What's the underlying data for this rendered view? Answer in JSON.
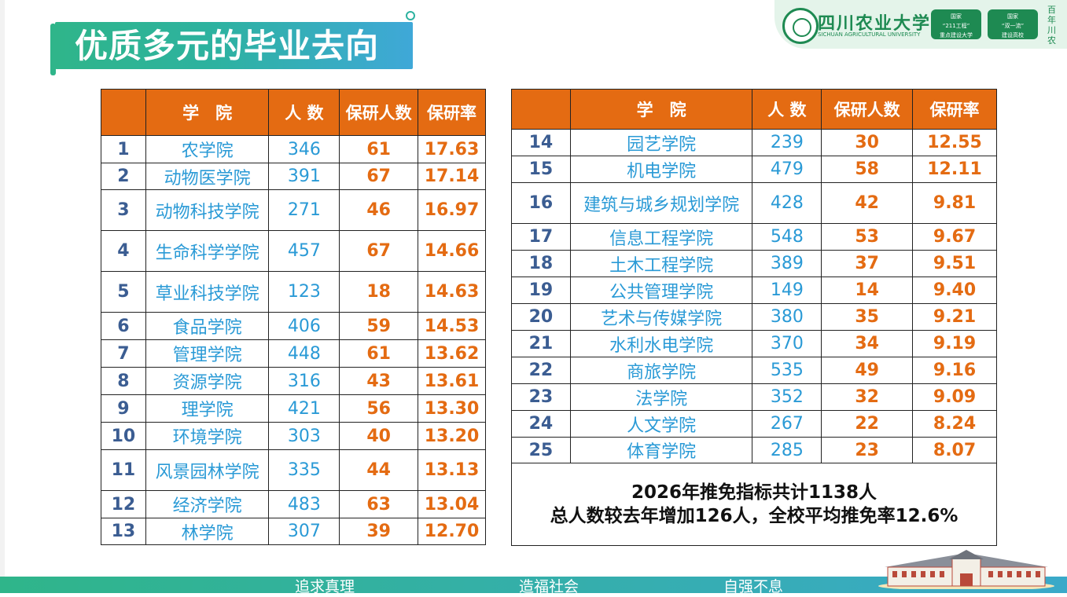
{
  "title": "优质多元的毕业去向",
  "logo": {
    "name": "四川农业大学",
    "sub": "SICHUAN AGRICULTURAL UNIVERSITY",
    "badge1": [
      "国家",
      "“211工程”",
      "重点建设大学"
    ],
    "badge2": [
      "国家",
      "“双一流”",
      "建设高校"
    ],
    "side": "百年川农"
  },
  "table_headers": [
    "学　院",
    "人 数",
    "保研人数",
    "保研率"
  ],
  "left_rows": [
    {
      "idx": "1",
      "name": "农学院",
      "count": "346",
      "rec": "61",
      "rate": "17.63"
    },
    {
      "idx": "2",
      "name": "动物医学院",
      "count": "391",
      "rec": "67",
      "rate": "17.14"
    },
    {
      "idx": "3",
      "name": "动物科技学院",
      "count": "271",
      "rec": "46",
      "rate": "16.97"
    },
    {
      "idx": "4",
      "name": "生命科学学院",
      "count": "457",
      "rec": "67",
      "rate": "14.66"
    },
    {
      "idx": "5",
      "name": "草业科技学院",
      "count": "123",
      "rec": "18",
      "rate": "14.63"
    },
    {
      "idx": "6",
      "name": "食品学院",
      "count": "406",
      "rec": "59",
      "rate": "14.53"
    },
    {
      "idx": "7",
      "name": "管理学院",
      "count": "448",
      "rec": "61",
      "rate": "13.62"
    },
    {
      "idx": "8",
      "name": "资源学院",
      "count": "316",
      "rec": "43",
      "rate": "13.61"
    },
    {
      "idx": "9",
      "name": "理学院",
      "count": "421",
      "rec": "56",
      "rate": "13.30"
    },
    {
      "idx": "10",
      "name": "环境学院",
      "count": "303",
      "rec": "40",
      "rate": "13.20"
    },
    {
      "idx": "11",
      "name": "风景园林学院",
      "count": "335",
      "rec": "44",
      "rate": "13.13"
    },
    {
      "idx": "12",
      "name": "经济学院",
      "count": "483",
      "rec": "63",
      "rate": "13.04"
    },
    {
      "idx": "13",
      "name": "林学院",
      "count": "307",
      "rec": "39",
      "rate": "12.70"
    }
  ],
  "right_rows": [
    {
      "idx": "14",
      "name": "园艺学院",
      "count": "239",
      "rec": "30",
      "rate": "12.55"
    },
    {
      "idx": "15",
      "name": "机电学院",
      "count": "479",
      "rec": "58",
      "rate": "12.11"
    },
    {
      "idx": "16",
      "name": "建筑与城乡规划学院",
      "count": "428",
      "rec": "42",
      "rate": "9.81"
    },
    {
      "idx": "17",
      "name": "信息工程学院",
      "count": "548",
      "rec": "53",
      "rate": "9.67"
    },
    {
      "idx": "18",
      "name": "土木工程学院",
      "count": "389",
      "rec": "37",
      "rate": "9.51"
    },
    {
      "idx": "19",
      "name": "公共管理学院",
      "count": "149",
      "rec": "14",
      "rate": "9.40"
    },
    {
      "idx": "20",
      "name": "艺术与传媒学院",
      "count": "380",
      "rec": "35",
      "rate": "9.21"
    },
    {
      "idx": "21",
      "name": "水利水电学院",
      "count": "370",
      "rec": "34",
      "rate": "9.19"
    },
    {
      "idx": "22",
      "name": "商旅学院",
      "count": "535",
      "rec": "49",
      "rate": "9.16"
    },
    {
      "idx": "23",
      "name": "法学院",
      "count": "352",
      "rec": "32",
      "rate": "9.09"
    },
    {
      "idx": "24",
      "name": "人文学院",
      "count": "267",
      "rec": "22",
      "rate": "8.24"
    },
    {
      "idx": "25",
      "name": "体育学院",
      "count": "285",
      "rec": "23",
      "rate": "8.07"
    }
  ],
  "summary": {
    "line1": "2026年推免指标共计1138人",
    "line2": "总人数较去年增加126人，全校平均推免率12.6%"
  },
  "slogans": [
    "追求真理",
    "造福社会",
    "自强不息"
  ],
  "colors": {
    "header": "#e46b12",
    "accent_green": "#2fb58a",
    "name_blue": "#2a9ad6",
    "index_blue": "#3b5d92"
  }
}
